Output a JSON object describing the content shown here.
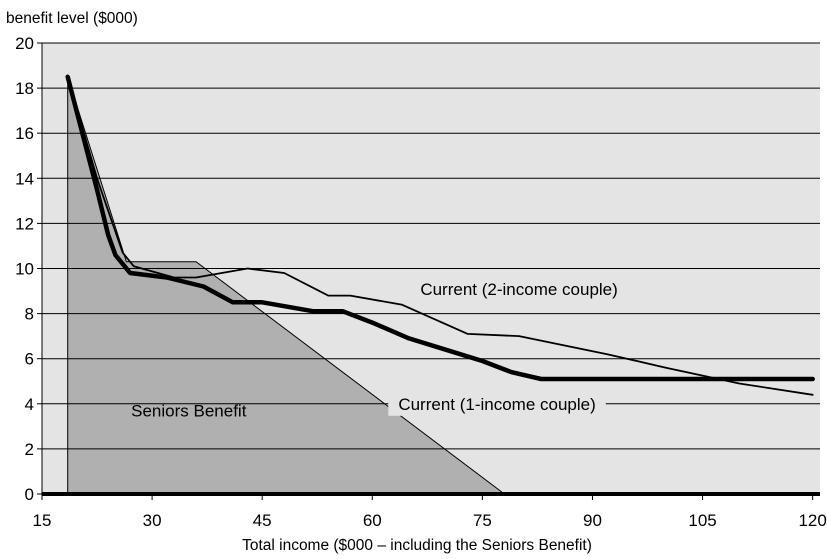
{
  "chart_data": {
    "type": "line",
    "title": "",
    "ylabel": "benefit level ($000)",
    "xlabel": "Total income ($000 – including the Seniors Benefit)",
    "xlim": [
      15,
      121
    ],
    "ylim": [
      0,
      20
    ],
    "x_ticks": [
      15,
      30,
      45,
      60,
      75,
      90,
      105,
      120
    ],
    "y_ticks": [
      0,
      2,
      4,
      6,
      8,
      10,
      12,
      14,
      16,
      18,
      20
    ],
    "grid": "horizontal",
    "colors": {
      "plot_background": "#e4e4e4",
      "area_fill": "#b0b0b0",
      "line": "#000000",
      "grid": "#000000"
    },
    "area": {
      "name": "Seniors Benefit",
      "x": [
        18.5,
        18.5,
        26.5,
        36,
        78
      ],
      "y": [
        0,
        18.5,
        10.3,
        10.3,
        0
      ]
    },
    "series": [
      {
        "name": "Current (2-income couple)",
        "style": "thin",
        "x": [
          18.5,
          22.5,
          26,
          27.5,
          33,
          36,
          43,
          48,
          54,
          57,
          64,
          73,
          80,
          92,
          100,
          110,
          120
        ],
        "y": [
          18.5,
          14,
          10.7,
          10.1,
          9.6,
          9.6,
          10,
          9.8,
          8.8,
          8.8,
          8.4,
          7.1,
          7.0,
          6.2,
          5.6,
          4.9,
          4.4
        ]
      },
      {
        "name": "Current (1-income couple)",
        "style": "thick",
        "x": [
          18.5,
          22.5,
          24,
          25,
          27,
          32,
          37,
          41,
          45,
          52,
          56,
          60,
          65,
          70,
          75,
          79,
          83,
          90,
          100,
          110,
          120
        ],
        "y": [
          18.5,
          13.5,
          11.5,
          10.6,
          9.8,
          9.6,
          9.2,
          8.5,
          8.5,
          8.1,
          8.1,
          7.6,
          6.9,
          6.4,
          5.9,
          5.4,
          5.1,
          5.1,
          5.1,
          5.1,
          5.1
        ]
      }
    ],
    "annotations": [
      {
        "text": "Seniors Benefit",
        "x": 35,
        "y": 3.7
      },
      {
        "text": "Current (2-income couple)",
        "x": 80,
        "y": 9.1
      },
      {
        "text": "Current (1-income couple)",
        "x": 77,
        "y": 4.0
      }
    ]
  }
}
